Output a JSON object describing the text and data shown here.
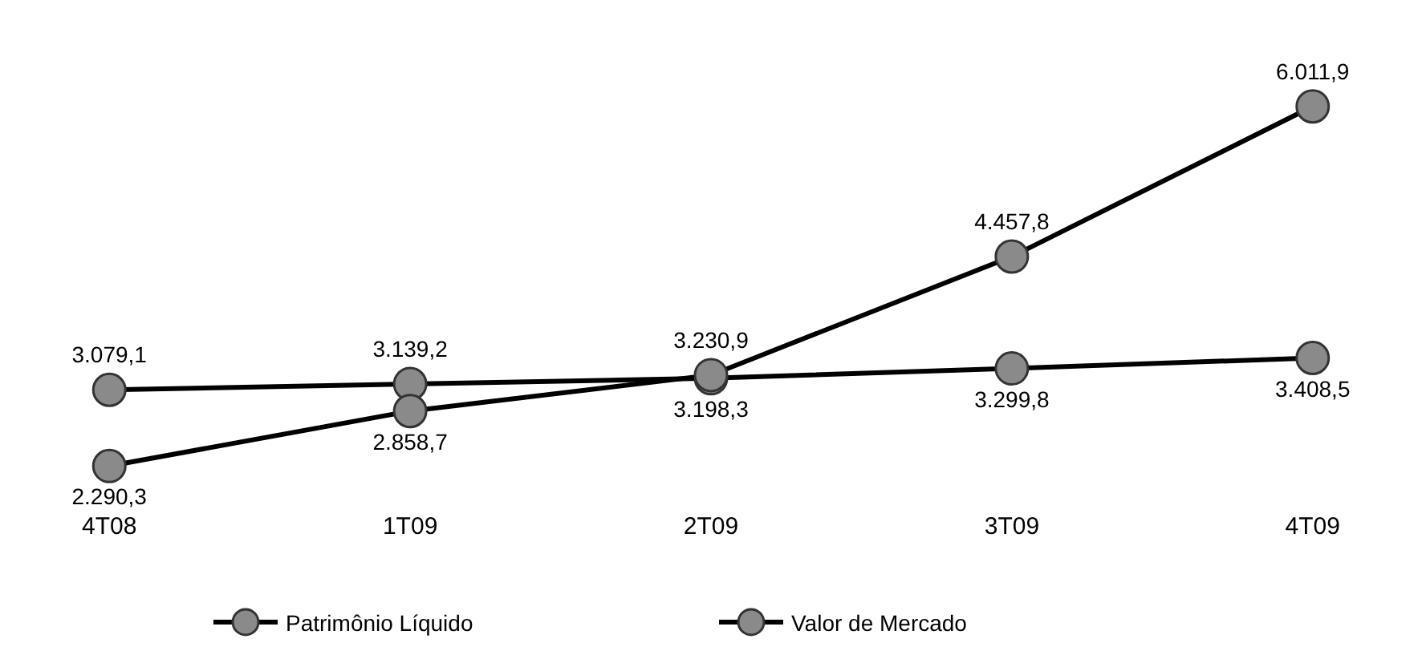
{
  "chart_data": {
    "type": "line",
    "categories": [
      "4T08",
      "1T09",
      "2T09",
      "3T09",
      "4T09"
    ],
    "series": [
      {
        "name": "Patrimônio Líquido",
        "color": "#000000",
        "values": [
          3079.1,
          3139.2,
          3198.3,
          3299.8,
          3408.5
        ],
        "value_labels": [
          "3.079,1",
          "3.139,2",
          "3.198,3",
          "3.299,8",
          "3.408,5"
        ]
      },
      {
        "name": "Valor de Mercado",
        "color": "#000000",
        "values": [
          2290.3,
          2858.7,
          3230.9,
          4457.8,
          6011.9
        ],
        "value_labels": [
          "2.290,3",
          "2.858,7",
          "3.230,9",
          "4.457,8",
          "6.011,9"
        ]
      }
    ],
    "marker": "circle",
    "line_style": "solid",
    "legend": "bottom",
    "grid": false,
    "tick_labels": "x"
  }
}
